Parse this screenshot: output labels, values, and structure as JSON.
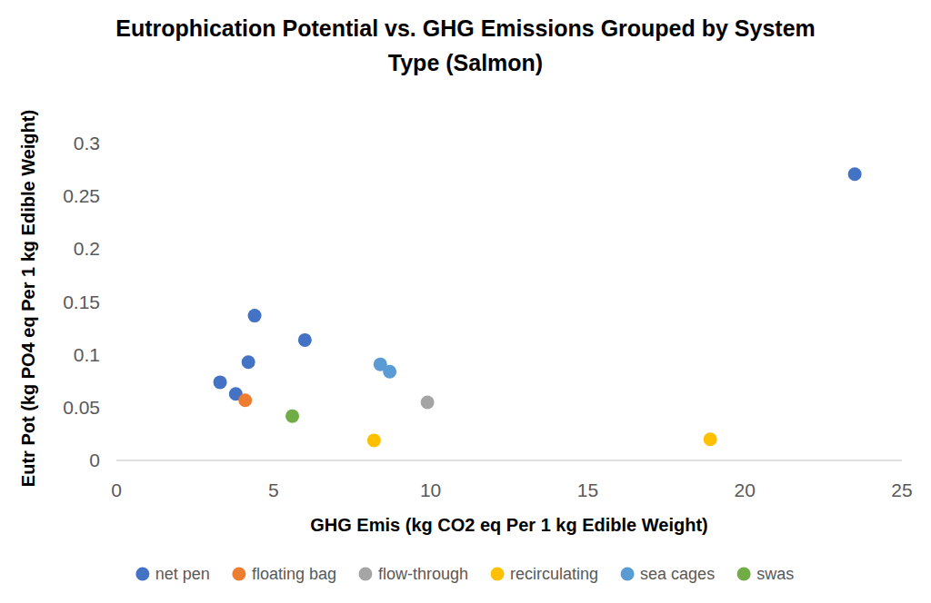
{
  "chart_data": {
    "type": "scatter",
    "title": "Eutrophication Potential vs. GHG Emissions Grouped by System Type (Salmon)",
    "x_label": "GHG Emis (kg CO2 eq Per 1 kg Edible Weight)",
    "y_label": "Eutr Pot (kg PO4 eq Per 1 kg Edible Weight)",
    "xlim": [
      0,
      25
    ],
    "xticks": [
      0,
      5,
      10,
      15,
      20,
      25
    ],
    "ylim": [
      0,
      0.3
    ],
    "yticks": [
      0,
      0.05,
      0.1,
      0.15,
      0.2,
      0.25,
      0.3
    ],
    "grid": false,
    "legend": "bottom",
    "marker": "circle",
    "series": [
      {
        "name": "net pen",
        "color": "#4472c4",
        "x": [
          3.3,
          3.8,
          4.2,
          4.4,
          6.0,
          23.5
        ],
        "values": [
          0.074,
          0.063,
          0.093,
          0.137,
          0.114,
          0.271
        ]
      },
      {
        "name": "floating bag",
        "color": "#ed7d31",
        "x": [
          4.1
        ],
        "values": [
          0.057
        ]
      },
      {
        "name": "flow-through",
        "color": "#a5a5a5",
        "x": [
          9.9
        ],
        "values": [
          0.055
        ]
      },
      {
        "name": "recirculating",
        "color": "#ffc000",
        "x": [
          8.2,
          18.9
        ],
        "values": [
          0.019,
          0.02
        ]
      },
      {
        "name": "sea cages",
        "color": "#5b9bd5",
        "x": [
          8.4,
          8.7
        ],
        "values": [
          0.091,
          0.084
        ]
      },
      {
        "name": "swas",
        "color": "#70ad47",
        "x": [
          5.6
        ],
        "values": [
          0.042
        ]
      }
    ]
  }
}
